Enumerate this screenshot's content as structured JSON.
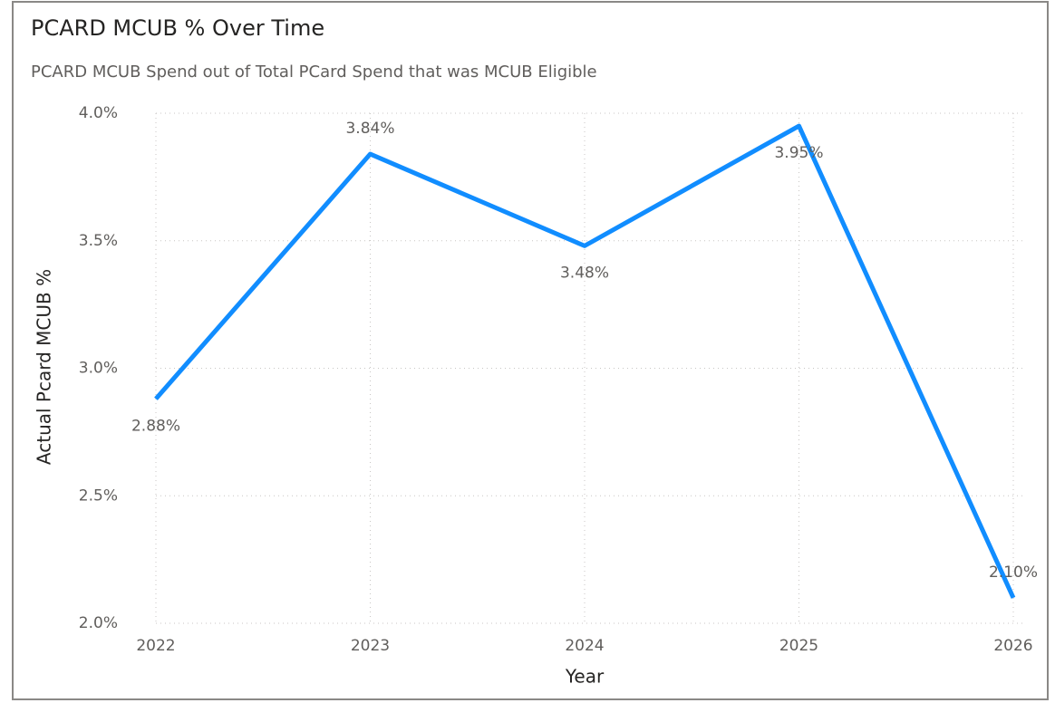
{
  "chart_data": {
    "type": "line",
    "title": "PCARD MCUB % Over Time",
    "subtitle": "PCARD MCUB Spend out of Total PCard Spend that was MCUB Eligible",
    "x_label": "Year",
    "y_label": "Actual Pcard MCUB %",
    "x": [
      2022,
      2023,
      2024,
      2025,
      2026
    ],
    "xlim": [
      2022,
      2026
    ],
    "xticks": [
      2022,
      2023,
      2024,
      2025,
      2026
    ],
    "series": [
      {
        "color": "#118dff",
        "values": [
          2.88,
          3.84,
          3.48,
          3.95,
          2.1
        ],
        "value_labels": [
          "2.88%",
          "3.84%",
          "3.48%",
          "3.95%",
          "2.10%"
        ]
      }
    ],
    "ylim": [
      2.0,
      4.0
    ],
    "yticks": [
      {
        "value": 2.0,
        "label": "2.0%"
      },
      {
        "value": 2.5,
        "label": "2.5%"
      },
      {
        "value": 3.0,
        "label": "3.0%"
      },
      {
        "value": 3.5,
        "label": "3.5%"
      },
      {
        "value": 4.0,
        "label": "4.0%"
      }
    ],
    "grid": true
  }
}
